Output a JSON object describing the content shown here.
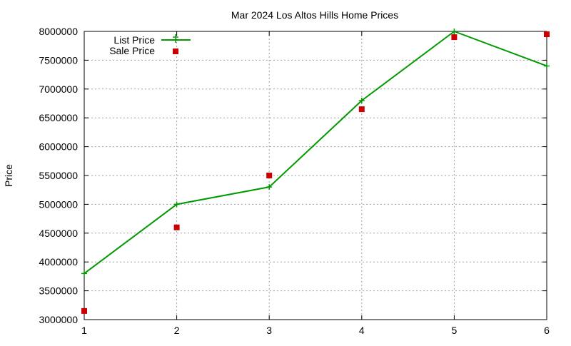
{
  "chart_data": {
    "type": "line",
    "title": "Mar 2024 Los Altos Hills Home Prices",
    "xlabel": "",
    "ylabel": "Price",
    "x": [
      1,
      2,
      3,
      4,
      5,
      6
    ],
    "xlim": [
      1,
      6
    ],
    "ylim": [
      3000000,
      8000000
    ],
    "xticks": [
      1,
      2,
      3,
      4,
      5,
      6
    ],
    "yticks": [
      3000000,
      3500000,
      4000000,
      4500000,
      5000000,
      5500000,
      6000000,
      6500000,
      7000000,
      7500000,
      8000000
    ],
    "grid": true,
    "legend_position": "top-left",
    "series": [
      {
        "name": "List Price",
        "style": "line-with-plus-markers",
        "color": "#009900",
        "values": [
          3800000,
          5000000,
          5300000,
          6800000,
          8000000,
          7400000
        ]
      },
      {
        "name": "Sale Price",
        "style": "square-markers",
        "color": "#cc0000",
        "values": [
          3150000,
          4600000,
          5500000,
          6650000,
          7900000,
          7950000
        ]
      }
    ]
  }
}
